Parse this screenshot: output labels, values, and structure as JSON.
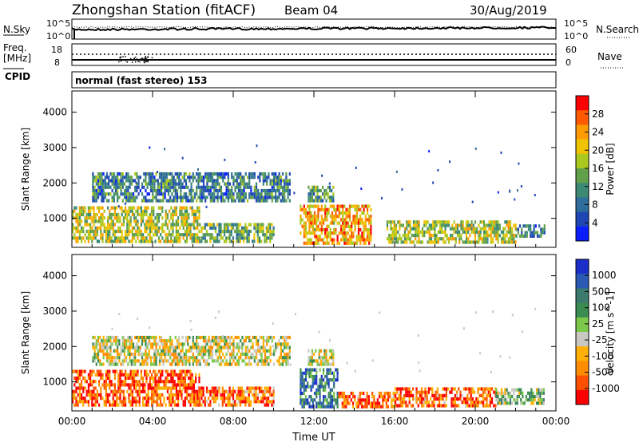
{
  "header": {
    "station": "Zhongshan Station (fitACF)",
    "beam": "Beam 04",
    "date": "30/Aug/2019"
  },
  "noise_panel": {
    "left_label": "N.Sky",
    "right_label": "N.Search",
    "left_ticks": [
      "10^5",
      "10^0"
    ],
    "right_ticks": [
      "10^5",
      "10^0"
    ]
  },
  "freq_panel": {
    "left_label": "Freq.",
    "left_unit": "[MHz]",
    "right_label": "Nave",
    "left_ticks": [
      "18",
      "8"
    ],
    "right_ticks": [
      "60",
      "0"
    ]
  },
  "cpid": {
    "label": "CPID",
    "value": "normal (fast stereo) 153"
  },
  "chart_data": [
    {
      "type": "heatmap",
      "name": "power",
      "ylabel": "Slant Range [km]",
      "xlabel": "",
      "x_ticks": [
        "00:00",
        "04:00",
        "08:00",
        "12:00",
        "16:00",
        "20:00",
        "00:00"
      ],
      "y_ticks": [
        1000,
        2000,
        3000,
        4000
      ],
      "ylim": [
        180,
        4600
      ],
      "xlim_hours": [
        0,
        24
      ],
      "colorbar": {
        "label": "Power [dB]",
        "ticks": [
          "4",
          "8",
          "12",
          "16",
          "20",
          "24",
          "28"
        ],
        "colors": [
          "#0a1eff",
          "#1e46b4",
          "#2f6d9c",
          "#3c8a74",
          "#62a04a",
          "#aac81e",
          "#f0c300",
          "#ff9a00",
          "#ff5a00",
          "#ff0000"
        ]
      },
      "patches": [
        {
          "t0": 0.0,
          "t1": 6.3,
          "r0": 300,
          "r1": 1250,
          "v": 0.55
        },
        {
          "t0": 6.3,
          "t1": 10.0,
          "r0": 300,
          "r1": 800,
          "v": 0.45
        },
        {
          "t0": 11.3,
          "t1": 14.8,
          "r0": 250,
          "r1": 1300,
          "v": 0.72
        },
        {
          "t0": 15.6,
          "t1": 22.0,
          "r0": 280,
          "r1": 900,
          "v": 0.55
        },
        {
          "t0": 22.0,
          "t1": 23.4,
          "r0": 450,
          "r1": 750,
          "v": 0.3
        },
        {
          "t0": 1.0,
          "t1": 10.8,
          "r0": 1450,
          "r1": 2250,
          "v": 0.3
        },
        {
          "t0": 11.7,
          "t1": 13.0,
          "r0": 1450,
          "r1": 1900,
          "v": 0.38
        }
      ]
    },
    {
      "type": "heatmap",
      "name": "velocity",
      "ylabel": "Slant Range [km]",
      "xlabel": "Time UT",
      "x_ticks": [
        "00:00",
        "04:00",
        "08:00",
        "12:00",
        "16:00",
        "20:00",
        "00:00"
      ],
      "y_ticks": [
        1000,
        2000,
        3000,
        4000
      ],
      "ylim": [
        180,
        4600
      ],
      "xlim_hours": [
        0,
        24
      ],
      "colorbar": {
        "label": "Velocity [m s^-1]",
        "ticks": [
          "1000",
          "500",
          "100",
          "25",
          "-25",
          "-100",
          "-500",
          "-1000"
        ],
        "colors": [
          "#1a2ec8",
          "#2a5ab4",
          "#3b7a6c",
          "#3a8c50",
          "#7cc84a",
          "#c8c8c0",
          "#ffb000",
          "#ff8c00",
          "#ff5000",
          "#ff0000"
        ]
      },
      "patches": [
        {
          "t0": 0.0,
          "t1": 6.3,
          "r0": 300,
          "r1": 1250,
          "v": 0.85
        },
        {
          "t0": 6.3,
          "t1": 10.0,
          "r0": 300,
          "r1": 800,
          "v": 0.8
        },
        {
          "t0": 11.3,
          "t1": 13.2,
          "r0": 250,
          "r1": 1300,
          "v": 0.25
        },
        {
          "t0": 13.2,
          "t1": 16.0,
          "r0": 250,
          "r1": 700,
          "v": 0.82
        },
        {
          "t0": 16.0,
          "t1": 21.0,
          "r0": 280,
          "r1": 800,
          "v": 0.8
        },
        {
          "t0": 21.0,
          "t1": 23.4,
          "r0": 350,
          "r1": 750,
          "v": 0.45
        },
        {
          "t0": 1.0,
          "t1": 10.8,
          "r0": 1450,
          "r1": 2250,
          "v": 0.55
        },
        {
          "t0": 11.7,
          "t1": 13.0,
          "r0": 1450,
          "r1": 1900,
          "v": 0.55
        }
      ]
    }
  ]
}
